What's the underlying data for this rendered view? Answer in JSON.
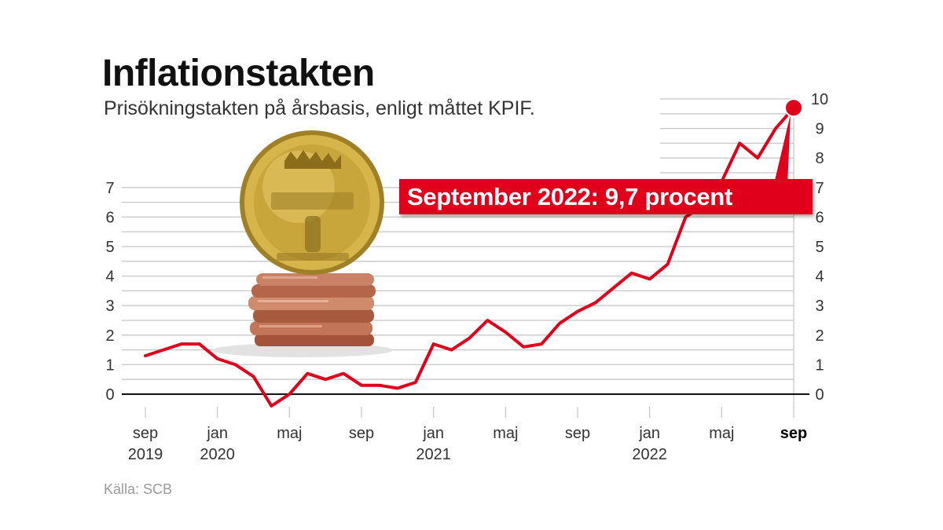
{
  "header": {
    "title": "Inflationstakten",
    "subtitle": "Prisökningstakten på årsbasis, enligt måttet KPIF."
  },
  "callout": {
    "label": "September 2022: 9,7 procent"
  },
  "source": "Källa: SCB",
  "colors": {
    "line": "#e0001b",
    "grid": "#c8c8c8",
    "zero_line": "#111111",
    "text": "#333333"
  },
  "illustration": "swedish-coins-icon",
  "chart_data": {
    "type": "line",
    "title": "Inflationstakten",
    "subtitle": "Prisökningstakten på årsbasis, enligt måttet KPIF.",
    "xlabel": "",
    "ylabel": "",
    "grid": true,
    "left_axis": {
      "ylim": [
        0,
        7
      ],
      "ticks": [
        "0",
        "1",
        "2",
        "3",
        "4",
        "5",
        "6",
        "7"
      ]
    },
    "right_axis": {
      "ylim": [
        0,
        10
      ],
      "ticks": [
        "0",
        "1",
        "2",
        "3",
        "4",
        "5",
        "6",
        "7",
        "8",
        "9",
        "10"
      ]
    },
    "x_ticks": [
      {
        "line1": "sep",
        "line2": "2019",
        "month_index": 0,
        "bold": false
      },
      {
        "line1": "jan",
        "line2": "2020",
        "month_index": 4,
        "bold": false
      },
      {
        "line1": "maj",
        "line2": "",
        "month_index": 8,
        "bold": false
      },
      {
        "line1": "sep",
        "line2": "",
        "month_index": 12,
        "bold": false
      },
      {
        "line1": "jan",
        "line2": "2021",
        "month_index": 16,
        "bold": false
      },
      {
        "line1": "maj",
        "line2": "",
        "month_index": 20,
        "bold": false
      },
      {
        "line1": "sep",
        "line2": "",
        "month_index": 24,
        "bold": false
      },
      {
        "line1": "jan",
        "line2": "2022",
        "month_index": 28,
        "bold": false
      },
      {
        "line1": "maj",
        "line2": "",
        "month_index": 32,
        "bold": false
      },
      {
        "line1": "sep",
        "line2": "",
        "month_index": 36,
        "bold": true
      }
    ],
    "series": [
      {
        "values": [
          1.3,
          1.5,
          1.7,
          1.7,
          1.2,
          1.0,
          0.6,
          -0.4,
          0.0,
          0.7,
          0.5,
          0.7,
          0.3,
          0.3,
          0.2,
          0.4,
          1.7,
          1.5,
          1.9,
          2.5,
          2.1,
          1.6,
          1.7,
          2.4,
          2.8,
          3.1,
          3.6,
          4.1,
          3.9,
          4.4,
          6.0,
          6.4,
          7.2,
          8.5,
          8.0,
          9.0,
          9.7
        ]
      }
    ],
    "highlight": {
      "month_index": 36,
      "value": 9.7
    }
  }
}
